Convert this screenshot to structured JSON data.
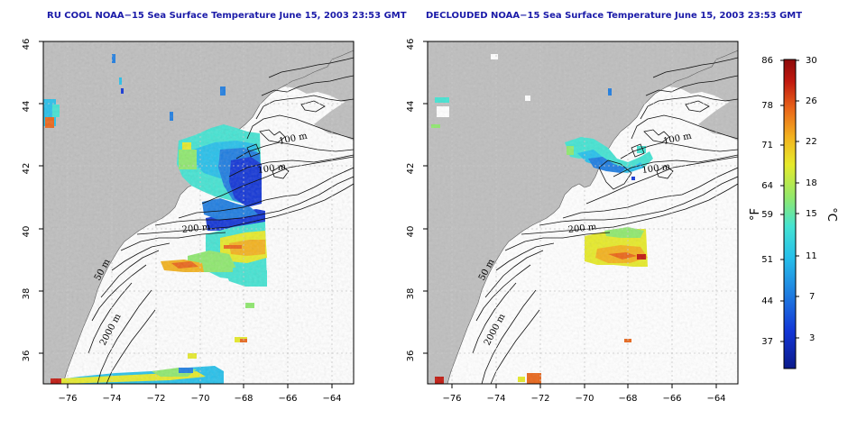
{
  "panels": [
    {
      "title": "RU COOL NOAA−15 Sea Surface Temperature June 15, 2003 23:53 GMT",
      "y_ticks": [
        "46",
        "44",
        "42",
        "40",
        "38",
        "36"
      ],
      "x_ticks": [
        "−76",
        "−74",
        "−72",
        "−70",
        "−68",
        "−66",
        "−64"
      ],
      "isobaths": [
        "100 m",
        "100 m",
        "200 m",
        "50 m",
        "2000 m"
      ]
    },
    {
      "title": "DECLOUDED NOAA−15 Sea Surface Temperature June 15, 2003 23:53 GMT",
      "y_ticks": [
        "46",
        "44",
        "42",
        "40",
        "38",
        "36"
      ],
      "x_ticks": [
        "−76",
        "−74",
        "−72",
        "−70",
        "−68",
        "−66",
        "−64"
      ],
      "isobaths": [
        "100 m",
        "100 m",
        "200 m",
        "50 m",
        "2000 m"
      ]
    }
  ],
  "colorbar": {
    "fahrenheit_ticks": [
      "86",
      "78",
      "71",
      "64",
      "59",
      "51",
      "44",
      "37"
    ],
    "celsius_ticks": [
      "30",
      "26",
      "22",
      "18",
      "15",
      "11",
      "7",
      "3"
    ],
    "fahrenheit_unit": "°F",
    "celsius_unit": "°C",
    "colors": [
      "#0b1a8a",
      "#1336d6",
      "#1f7de0",
      "#27c0ea",
      "#45e3d2",
      "#8fe86f",
      "#e6ea2b",
      "#f3b21f",
      "#e9661a",
      "#c0180f",
      "#8c0a0a"
    ]
  },
  "colors": {
    "land": "#bebebe",
    "title": "#1a1aa8",
    "grid": "#c8c8c8"
  }
}
